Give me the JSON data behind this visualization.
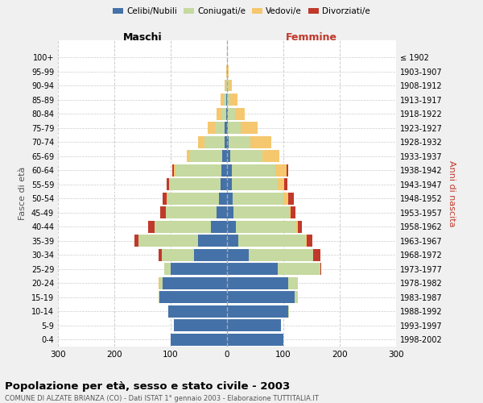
{
  "age_groups": [
    "0-4",
    "5-9",
    "10-14",
    "15-19",
    "20-24",
    "25-29",
    "30-34",
    "35-39",
    "40-44",
    "45-49",
    "50-54",
    "55-59",
    "60-64",
    "65-69",
    "70-74",
    "75-79",
    "80-84",
    "85-89",
    "90-94",
    "95-99",
    "100+"
  ],
  "birth_years": [
    "1998-2002",
    "1993-1997",
    "1988-1992",
    "1983-1987",
    "1978-1982",
    "1973-1977",
    "1968-1972",
    "1963-1967",
    "1958-1962",
    "1953-1957",
    "1948-1952",
    "1943-1947",
    "1938-1942",
    "1933-1937",
    "1928-1932",
    "1923-1927",
    "1918-1922",
    "1913-1917",
    "1908-1912",
    "1903-1907",
    "≤ 1902"
  ],
  "colors": {
    "celibe": "#4472a8",
    "coniugato": "#c5d9a0",
    "vedovo": "#f5c76e",
    "divorziato": "#c0392b"
  },
  "maschi": {
    "celibe": [
      100,
      95,
      105,
      120,
      115,
      100,
      58,
      52,
      28,
      18,
      14,
      12,
      10,
      8,
      5,
      4,
      2,
      2,
      0,
      0,
      0
    ],
    "coniugato": [
      0,
      0,
      0,
      2,
      4,
      12,
      58,
      105,
      100,
      90,
      92,
      90,
      82,
      58,
      35,
      18,
      8,
      4,
      2,
      0,
      0
    ],
    "vedovo": [
      0,
      0,
      0,
      0,
      2,
      0,
      0,
      0,
      0,
      1,
      1,
      1,
      2,
      5,
      12,
      12,
      9,
      6,
      3,
      1,
      0
    ],
    "divorziato": [
      0,
      0,
      0,
      0,
      0,
      0,
      5,
      8,
      12,
      10,
      8,
      4,
      3,
      0,
      0,
      0,
      0,
      0,
      0,
      0,
      0
    ]
  },
  "femmine": {
    "nubile": [
      100,
      95,
      108,
      120,
      108,
      90,
      38,
      20,
      15,
      12,
      10,
      8,
      8,
      5,
      3,
      2,
      2,
      0,
      0,
      0,
      0
    ],
    "coniugata": [
      0,
      0,
      2,
      5,
      18,
      75,
      115,
      120,
      108,
      98,
      90,
      82,
      78,
      58,
      38,
      22,
      12,
      6,
      3,
      1,
      0
    ],
    "vedova": [
      0,
      0,
      0,
      0,
      0,
      0,
      0,
      1,
      2,
      3,
      8,
      12,
      20,
      30,
      38,
      30,
      18,
      12,
      5,
      2,
      0
    ],
    "divorziata": [
      0,
      0,
      0,
      0,
      0,
      2,
      12,
      10,
      8,
      8,
      10,
      5,
      3,
      0,
      0,
      0,
      0,
      0,
      0,
      0,
      0
    ]
  },
  "title_main": "Popolazione per età, sesso e stato civile - 2003",
  "title_sub": "COMUNE DI ALZATE BRIANZA (CO) - Dati ISTAT 1° gennaio 2003 - Elaborazione TUTTITALIA.IT",
  "xlabel_left": "Maschi",
  "xlabel_right": "Femmine",
  "ylabel_left": "Fasce di età",
  "ylabel_right": "Anni di nascita",
  "xlim": 300,
  "bg_color": "#f0f0f0",
  "plot_bg": "#ffffff",
  "grid_color": "#cccccc",
  "legend_labels": [
    "Celibi/Nubili",
    "Coniugati/e",
    "Vedovi/e",
    "Divorziati/e"
  ],
  "legend_colors": [
    "#4472a8",
    "#c5d9a0",
    "#f5c76e",
    "#c0392b"
  ]
}
